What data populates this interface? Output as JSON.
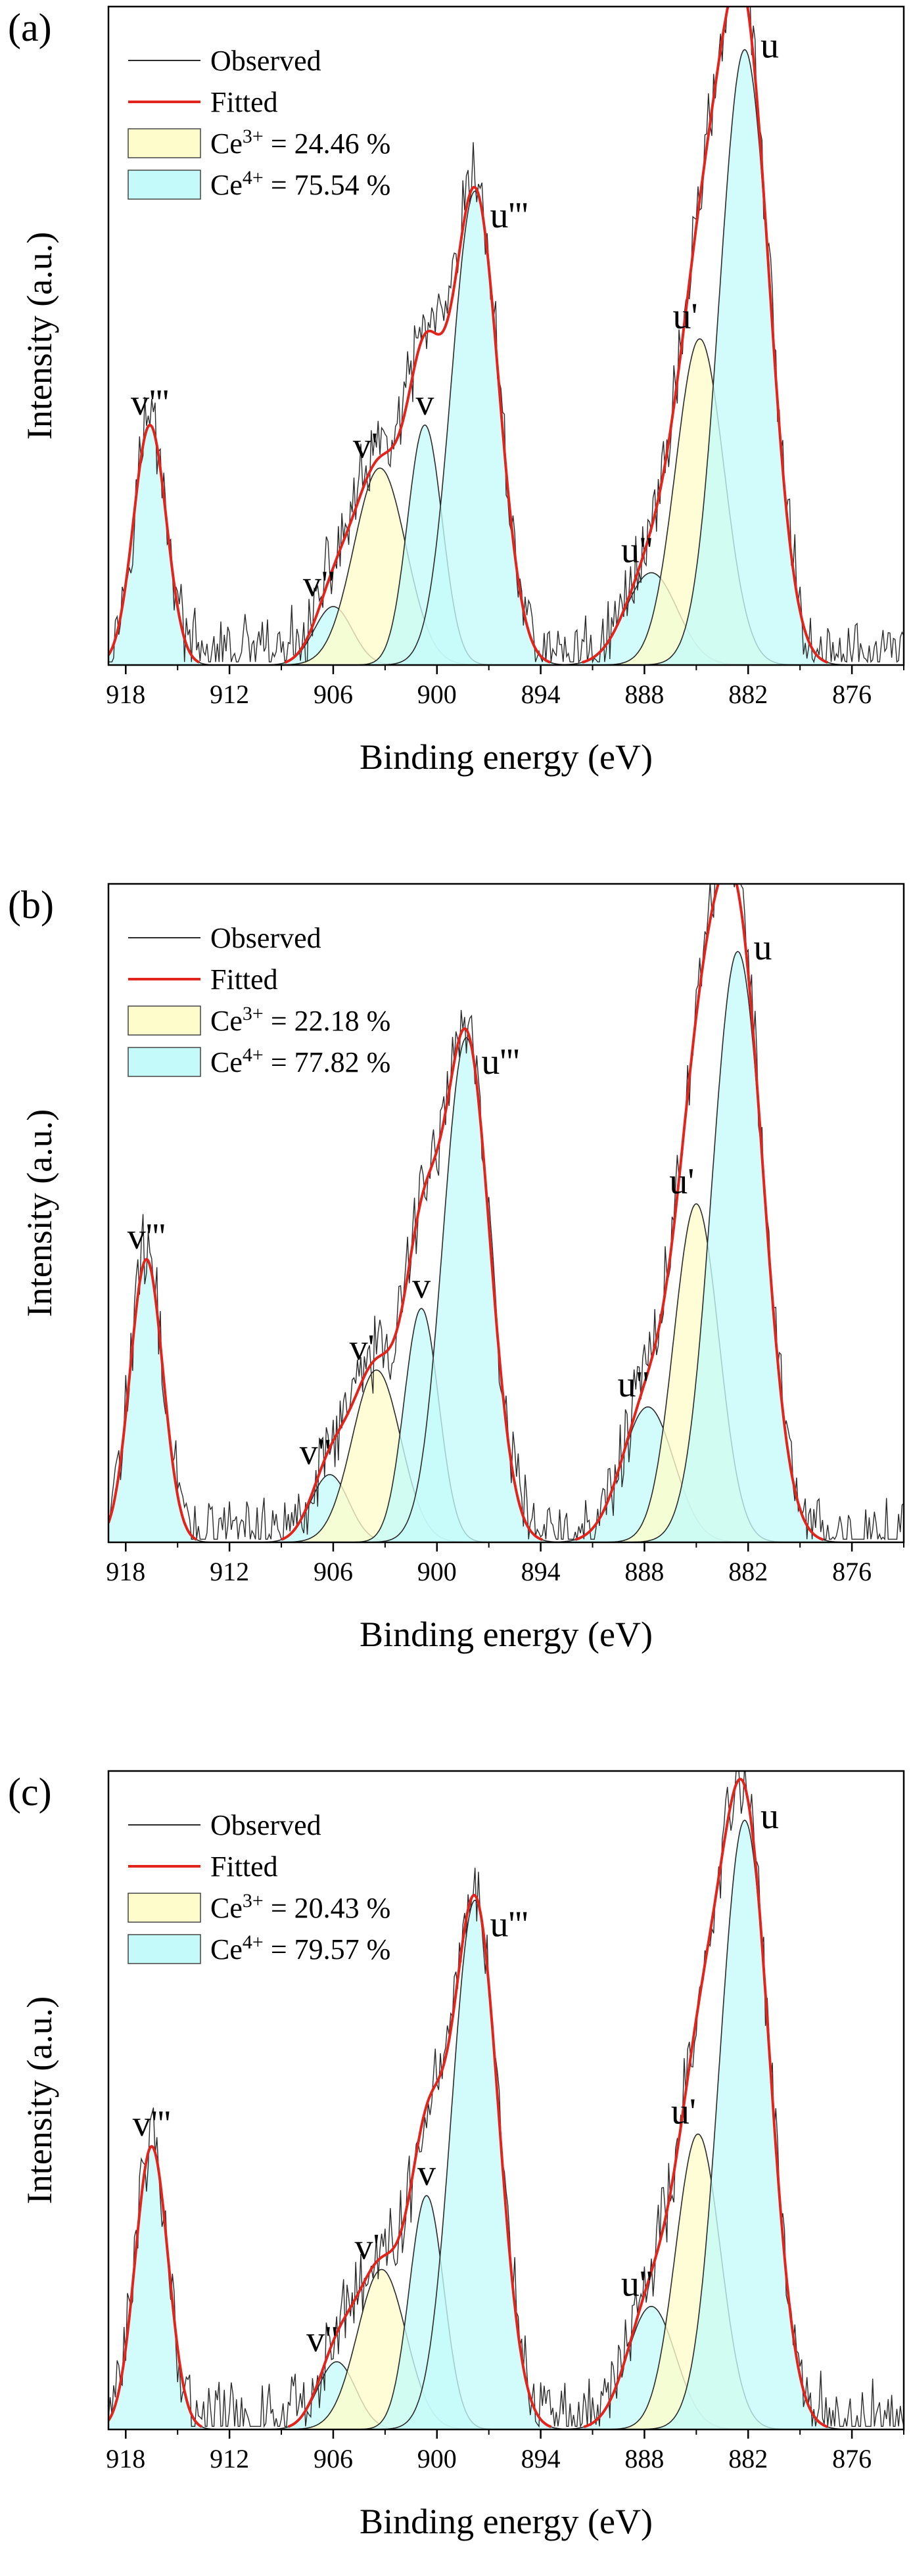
{
  "figure": {
    "panels": [
      {
        "label": "(a)",
        "legend": {
          "observed": "Observed",
          "fitted": "Fitted",
          "ce3": {
            "prefix": "Ce",
            "sup": "3+",
            "value": " = 24.46 %"
          },
          "ce4": {
            "prefix": "Ce",
            "sup": "4+",
            "value": " = 75.54 %"
          }
        }
      },
      {
        "label": "(b)",
        "legend": {
          "observed": "Observed",
          "fitted": "Fitted",
          "ce3": {
            "prefix": "Ce",
            "sup": "3+",
            "value": " = 22.18 %"
          },
          "ce4": {
            "prefix": "Ce",
            "sup": "4+",
            "value": " = 77.82 %"
          }
        }
      },
      {
        "label": "(c)",
        "legend": {
          "observed": "Observed",
          "fitted": "Fitted",
          "ce3": {
            "prefix": "Ce",
            "sup": "3+",
            "value": " = 20.43 %"
          },
          "ce4": {
            "prefix": "Ce",
            "sup": "4+",
            "value": " = 79.57 %"
          }
        }
      }
    ]
  },
  "chart_data": [
    {
      "type": "area",
      "xlabel": "Binding energy (eV)",
      "ylabel": "Intensity (a.u.)",
      "xlim": [
        919,
        873
      ],
      "x_reversed": true,
      "ylim": [
        0,
        1.07
      ],
      "x_ticks": [
        918,
        912,
        906,
        900,
        894,
        888,
        882,
        876
      ],
      "y_ticks_shown": false,
      "ce3_percent": 24.46,
      "ce4_percent": 75.54,
      "peaks": [
        {
          "label": "v'''",
          "center": 916.6,
          "height": 0.39,
          "width": 0.95,
          "species": "Ce4+"
        },
        {
          "label": "v''",
          "center": 906.0,
          "height": 0.095,
          "width": 1.1,
          "species": "Ce4+"
        },
        {
          "label": "v'",
          "center": 903.3,
          "height": 0.32,
          "width": 1.5,
          "species": "Ce3+"
        },
        {
          "label": "v",
          "center": 900.7,
          "height": 0.39,
          "width": 1.0,
          "species": "Ce4+"
        },
        {
          "label": "u'''",
          "center": 897.8,
          "height": 0.77,
          "width": 1.35,
          "species": "Ce4+"
        },
        {
          "label": "u''",
          "center": 887.6,
          "height": 0.15,
          "width": 1.5,
          "species": "Ce4+"
        },
        {
          "label": "u'",
          "center": 884.8,
          "height": 0.53,
          "width": 1.4,
          "species": "Ce3+"
        },
        {
          "label": "u",
          "center": 882.2,
          "height": 1.0,
          "width": 1.45,
          "species": "Ce4+"
        }
      ],
      "series": [
        {
          "name": "Observed",
          "color": "#000000"
        },
        {
          "name": "Fitted",
          "color": "#e3241c"
        }
      ]
    },
    {
      "type": "area",
      "xlabel": "Binding energy (eV)",
      "ylabel": "Intensity (a.u.)",
      "xlim": [
        919,
        873
      ],
      "x_reversed": true,
      "ylim": [
        0,
        1.07
      ],
      "x_ticks": [
        918,
        912,
        906,
        900,
        894,
        888,
        882,
        876
      ],
      "y_ticks_shown": false,
      "ce3_percent": 22.18,
      "ce4_percent": 77.82,
      "peaks": [
        {
          "label": "v'''",
          "center": 916.8,
          "height": 0.46,
          "width": 0.95,
          "species": "Ce4+"
        },
        {
          "label": "v''",
          "center": 906.2,
          "height": 0.11,
          "width": 1.1,
          "species": "Ce4+"
        },
        {
          "label": "v'",
          "center": 903.5,
          "height": 0.28,
          "width": 1.4,
          "species": "Ce3+"
        },
        {
          "label": "v",
          "center": 900.9,
          "height": 0.38,
          "width": 1.0,
          "species": "Ce4+"
        },
        {
          "label": "u'''",
          "center": 898.3,
          "height": 0.82,
          "width": 1.35,
          "species": "Ce4+"
        },
        {
          "label": "u''",
          "center": 887.8,
          "height": 0.22,
          "width": 1.5,
          "species": "Ce4+"
        },
        {
          "label": "u'",
          "center": 885.0,
          "height": 0.55,
          "width": 1.3,
          "species": "Ce3+"
        },
        {
          "label": "u",
          "center": 882.6,
          "height": 0.96,
          "width": 1.5,
          "species": "Ce4+"
        }
      ],
      "series": [
        {
          "name": "Observed",
          "color": "#000000"
        },
        {
          "name": "Fitted",
          "color": "#e3241c"
        }
      ]
    },
    {
      "type": "area",
      "xlabel": "Binding energy (eV)",
      "ylabel": "Intensity (a.u.)",
      "xlim": [
        919,
        873
      ],
      "x_reversed": true,
      "ylim": [
        0,
        1.07
      ],
      "x_ticks": [
        918,
        912,
        906,
        900,
        894,
        888,
        882,
        876
      ],
      "y_ticks_shown": false,
      "ce3_percent": 20.43,
      "ce4_percent": 79.57,
      "peaks": [
        {
          "label": "v'''",
          "center": 916.5,
          "height": 0.46,
          "width": 0.95,
          "species": "Ce4+"
        },
        {
          "label": "v''",
          "center": 905.8,
          "height": 0.11,
          "width": 1.1,
          "species": "Ce4+"
        },
        {
          "label": "v'",
          "center": 903.2,
          "height": 0.26,
          "width": 1.4,
          "species": "Ce3+"
        },
        {
          "label": "v",
          "center": 900.6,
          "height": 0.38,
          "width": 1.0,
          "species": "Ce4+"
        },
        {
          "label": "u'''",
          "center": 897.8,
          "height": 0.86,
          "width": 1.35,
          "species": "Ce4+"
        },
        {
          "label": "u''",
          "center": 887.6,
          "height": 0.2,
          "width": 1.4,
          "species": "Ce4+"
        },
        {
          "label": "u'",
          "center": 884.9,
          "height": 0.48,
          "width": 1.3,
          "species": "Ce3+"
        },
        {
          "label": "u",
          "center": 882.2,
          "height": 0.99,
          "width": 1.45,
          "species": "Ce4+"
        }
      ],
      "series": [
        {
          "name": "Observed",
          "color": "#000000"
        },
        {
          "name": "Fitted",
          "color": "#e3241c"
        }
      ]
    }
  ],
  "colors": {
    "ce3_fill": "#fffccb",
    "ce4_fill": "#c4fbfa",
    "fitted": "#e3241c",
    "observed": "#2b2b2b"
  }
}
